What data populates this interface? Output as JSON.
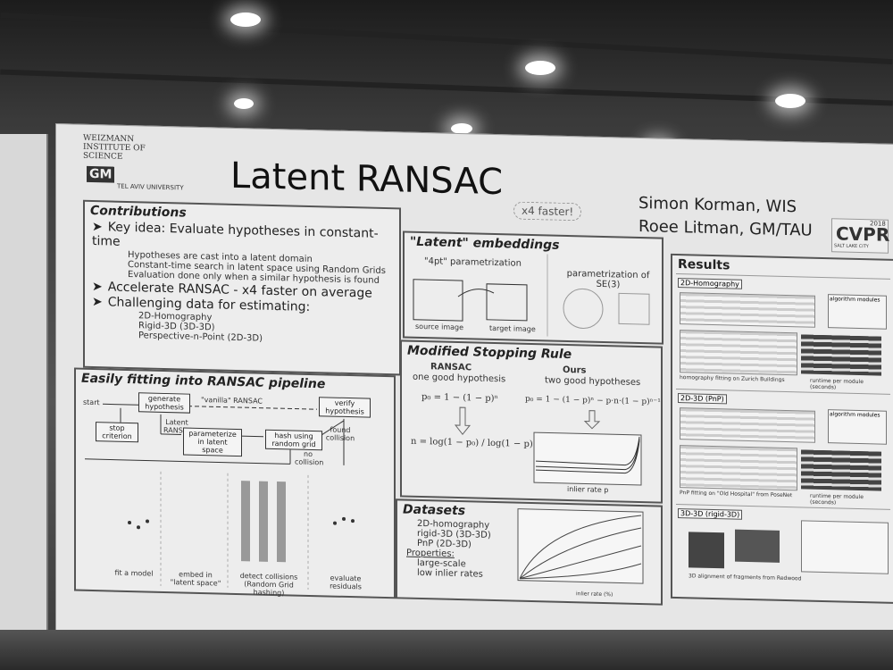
{
  "header": {
    "institutions": [
      "WEIZMANN INSTITUTE OF SCIENCE",
      "GM",
      "TEL AVIV UNIVERSITY"
    ],
    "title": "Latent RANSAC",
    "badge": "x4 faster!",
    "authors": [
      "Simon Korman, WIS",
      "Roee Litman, GM/TAU"
    ],
    "conference": "CVPR",
    "conference_year": "2018",
    "location": "SALT LAKE CITY"
  },
  "contributions": {
    "heading": "Contributions",
    "items": [
      {
        "text": "Key idea: Evaluate hypotheses in constant-time",
        "subitems": [
          "Hypotheses are cast into a latent domain",
          "Constant-time search in latent space using Random Grids",
          "Evaluation done only when a similar hypothesis is found"
        ]
      },
      {
        "text": "Accelerate RANSAC - x4 faster on average",
        "subitems": []
      },
      {
        "text": "Challenging data for estimating:",
        "subitems": [
          "2D-Homography",
          "Rigid-3D (3D-3D)",
          "Perspective-n-Point (2D-3D)"
        ]
      }
    ]
  },
  "pipeline": {
    "heading": "Easily fitting into RANSAC pipeline",
    "start": "start",
    "generate": "generate hypothesis",
    "vanilla": "\"vanilla\" RANSAC",
    "verify": "verify hypothesis",
    "stop": "stop criterion",
    "latent": "Latent RANSAC",
    "parameterize": "parameterize in latent space",
    "hash": "hash using random grid",
    "found": "found collision",
    "no": "no collision",
    "steps": [
      "fit a model",
      "embed in \"latent space\"",
      "detect collisions (Random Grid hashing)",
      "evaluate residuals"
    ]
  },
  "embeddings": {
    "heading": "\"Latent\" embeddings",
    "left": "\"4pt\" parametrization",
    "right": "parametrization of SE(3)",
    "source": "source image",
    "target": "target image"
  },
  "stopping": {
    "heading": "Modified Stopping Rule",
    "ransac": "RANSAC",
    "ransac_sub": "one good hypothesis",
    "ransac_eq": "p₀ = 1 − (1 − p)ⁿ",
    "n_eq": "n = log(1 − p₀) / log(1 − p)",
    "ours": "Ours",
    "ours_sub": "two good hypotheses",
    "ours_eq": "p₀ = 1 − (1 − p)ⁿ − p·n·(1 − p)ⁿ⁻¹",
    "xlabel": "inlier rate p"
  },
  "datasets": {
    "heading": "Datasets",
    "items": [
      "2D-homography",
      "rigid-3D (3D-3D)",
      "PnP (2D-3D)"
    ],
    "properties": "Properties:",
    "property_items": [
      "large-scale",
      "low inlier rates"
    ],
    "xlabel": "inlier rate (%)"
  },
  "results": {
    "heading": "Results",
    "sections": [
      {
        "name": "2D-Homography",
        "caption": "homography fitting on Zurich Buildings",
        "runtime": "runtime per module (seconds)",
        "modules": "algorithm modules"
      },
      {
        "name": "2D-3D (PnP)",
        "caption": "PnP fitting on \"Old Hospital\" from PoseNet",
        "runtime": "runtime per module (seconds)",
        "modules": "algorithm modules"
      },
      {
        "name": "3D-3D (rigid-3D)",
        "caption": "3D alignment of fragments from Redwood"
      }
    ]
  }
}
